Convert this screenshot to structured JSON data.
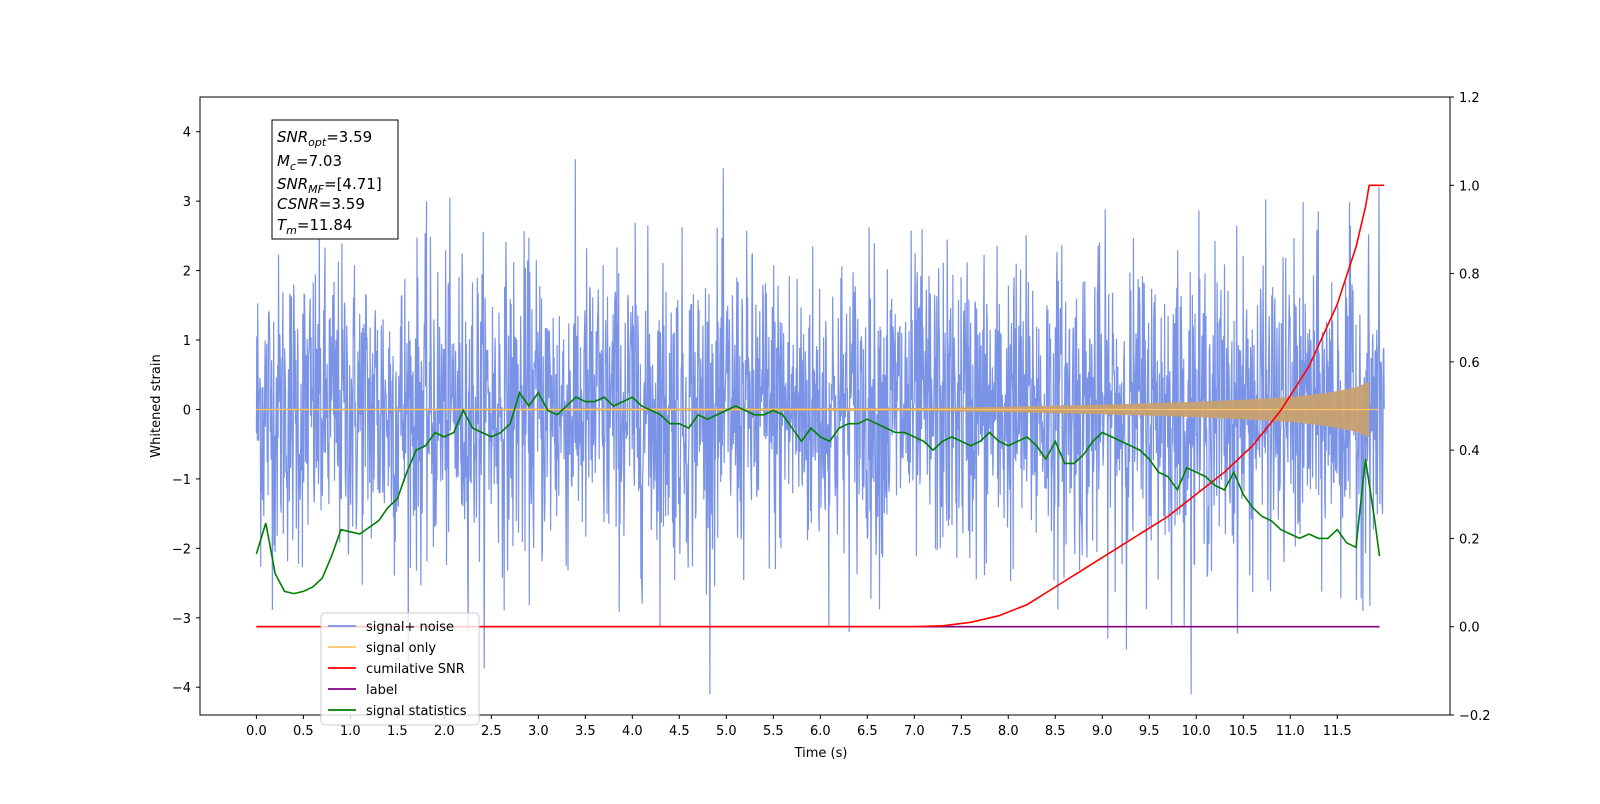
{
  "chart_data": {
    "type": "line",
    "xlabel": "Time (s)",
    "ylabel": "Whitened strain",
    "xlim": [
      -0.6,
      12.7
    ],
    "ylim": [
      -4.4,
      4.5
    ],
    "y2lim": [
      -0.2,
      1.2
    ],
    "x_ticks": [
      "0.0",
      "0.5",
      "1.0",
      "1.5",
      "2.0",
      "2.5",
      "3.0",
      "3.5",
      "4.0",
      "4.5",
      "5.0",
      "5.5",
      "6.0",
      "6.5",
      "7.0",
      "7.5",
      "8.0",
      "8.5",
      "9.0",
      "9.5",
      "10.0",
      "10.5",
      "11.0",
      "11.5"
    ],
    "y_ticks": [
      "4",
      "3",
      "2",
      "1",
      "0",
      "−1",
      "−2",
      "−3",
      "−4"
    ],
    "y2_ticks": [
      "1.2",
      "1.0",
      "0.8",
      "0.6",
      "0.4",
      "0.2",
      "0.0",
      "−0.2"
    ],
    "grid": false,
    "legend_placement": "lower-left",
    "annotation": [
      {
        "main": "SNR",
        "sub": "opt",
        "value": "=3.59"
      },
      {
        "main": "M",
        "sub": "c",
        "value": "=7.03"
      },
      {
        "main": "SNR",
        "sub": "MF",
        "value": "=[4.71]"
      },
      {
        "main": "CSNR",
        "sub": "",
        "value": "=3.59"
      },
      {
        "main": "T",
        "sub": "m",
        "value": "=11.84"
      }
    ],
    "series": [
      {
        "name": "signal+ noise",
        "color": "#7a93e6",
        "axis": "left",
        "x_range": [
          0.0,
          12.0
        ],
        "typical_amplitude": 1.1,
        "peak_amplitude": 4.1
      },
      {
        "name": "signal only",
        "color": "#ffc266",
        "axis": "left",
        "x_range": [
          0.0,
          11.95
        ],
        "envelope": {
          "x": [
            0,
            7,
            8,
            9,
            10,
            10.5,
            11,
            11.4,
            11.7,
            11.84
          ],
          "y": [
            0.01,
            0.02,
            0.04,
            0.07,
            0.11,
            0.14,
            0.18,
            0.24,
            0.32,
            0.4
          ]
        }
      },
      {
        "name": "cumilative SNR",
        "color": "#ff0000",
        "axis": "right",
        "x": [
          0.0,
          6.0,
          7.0,
          7.3,
          7.6,
          7.9,
          8.2,
          8.5,
          8.8,
          9.1,
          9.4,
          9.7,
          10.0,
          10.3,
          10.6,
          10.9,
          11.2,
          11.5,
          11.7,
          11.8,
          11.84,
          12.0
        ],
        "y": [
          0.0,
          0.0,
          0.0,
          0.002,
          0.01,
          0.025,
          0.05,
          0.09,
          0.13,
          0.17,
          0.21,
          0.25,
          0.3,
          0.35,
          0.41,
          0.49,
          0.59,
          0.73,
          0.86,
          0.95,
          1.0,
          1.0
        ]
      },
      {
        "name": "label",
        "color": "#800080",
        "axis": "right",
        "x": [
          0.0,
          11.95
        ],
        "y": [
          0.0,
          0.0
        ]
      },
      {
        "name": "signal statistics",
        "color": "#008000",
        "axis": "right",
        "x": [
          0.0,
          0.1,
          0.2,
          0.3,
          0.4,
          0.5,
          0.6,
          0.7,
          0.8,
          0.9,
          1.0,
          1.1,
          1.2,
          1.3,
          1.4,
          1.5,
          1.6,
          1.7,
          1.8,
          1.9,
          2.0,
          2.1,
          2.2,
          2.3,
          2.4,
          2.5,
          2.6,
          2.7,
          2.8,
          2.9,
          3.0,
          3.1,
          3.2,
          3.3,
          3.4,
          3.5,
          3.6,
          3.7,
          3.8,
          3.9,
          4.0,
          4.1,
          4.2,
          4.3,
          4.4,
          4.5,
          4.6,
          4.7,
          4.8,
          4.9,
          5.0,
          5.1,
          5.2,
          5.3,
          5.4,
          5.5,
          5.6,
          5.7,
          5.8,
          5.9,
          6.0,
          6.1,
          6.2,
          6.3,
          6.4,
          6.5,
          6.6,
          6.7,
          6.8,
          6.9,
          7.0,
          7.1,
          7.2,
          7.3,
          7.4,
          7.5,
          7.6,
          7.7,
          7.8,
          7.9,
          8.0,
          8.1,
          8.2,
          8.3,
          8.4,
          8.5,
          8.6,
          8.7,
          8.8,
          8.9,
          9.0,
          9.1,
          9.2,
          9.3,
          9.4,
          9.5,
          9.6,
          9.7,
          9.8,
          9.9,
          10.0,
          10.1,
          10.2,
          10.3,
          10.4,
          10.5,
          10.6,
          10.7,
          10.8,
          10.9,
          11.0,
          11.1,
          11.2,
          11.3,
          11.4,
          11.5,
          11.6,
          11.7,
          11.8,
          11.9,
          11.95
        ],
        "y": [
          0.165,
          0.235,
          0.12,
          0.08,
          0.075,
          0.08,
          0.09,
          0.11,
          0.16,
          0.22,
          0.215,
          0.21,
          0.225,
          0.24,
          0.27,
          0.29,
          0.35,
          0.4,
          0.41,
          0.44,
          0.43,
          0.44,
          0.49,
          0.45,
          0.44,
          0.43,
          0.44,
          0.46,
          0.53,
          0.5,
          0.53,
          0.49,
          0.48,
          0.5,
          0.52,
          0.51,
          0.51,
          0.52,
          0.5,
          0.51,
          0.52,
          0.5,
          0.49,
          0.48,
          0.46,
          0.46,
          0.45,
          0.48,
          0.47,
          0.48,
          0.49,
          0.5,
          0.49,
          0.48,
          0.48,
          0.49,
          0.48,
          0.45,
          0.42,
          0.45,
          0.43,
          0.42,
          0.45,
          0.46,
          0.46,
          0.47,
          0.46,
          0.45,
          0.44,
          0.44,
          0.43,
          0.42,
          0.4,
          0.42,
          0.43,
          0.42,
          0.41,
          0.42,
          0.44,
          0.42,
          0.41,
          0.42,
          0.43,
          0.41,
          0.38,
          0.42,
          0.37,
          0.37,
          0.39,
          0.42,
          0.44,
          0.43,
          0.42,
          0.41,
          0.4,
          0.38,
          0.35,
          0.34,
          0.31,
          0.36,
          0.35,
          0.34,
          0.32,
          0.31,
          0.35,
          0.3,
          0.27,
          0.25,
          0.24,
          0.22,
          0.21,
          0.2,
          0.21,
          0.2,
          0.2,
          0.22,
          0.19,
          0.18,
          0.38,
          0.24,
          0.16
        ]
      }
    ]
  }
}
